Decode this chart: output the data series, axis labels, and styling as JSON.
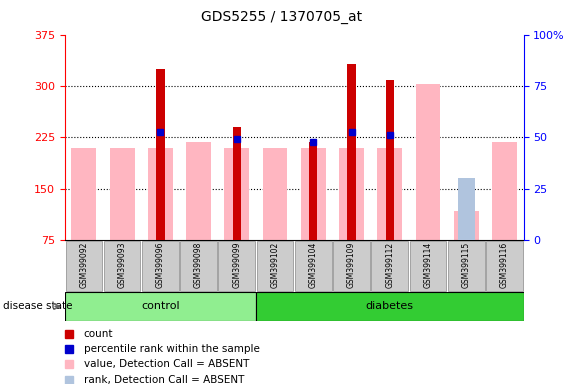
{
  "title": "GDS5255 / 1370705_at",
  "samples": [
    "GSM399092",
    "GSM399093",
    "GSM399096",
    "GSM399098",
    "GSM399099",
    "GSM399102",
    "GSM399104",
    "GSM399109",
    "GSM399112",
    "GSM399114",
    "GSM399115",
    "GSM399116"
  ],
  "groups": [
    "control",
    "control",
    "control",
    "control",
    "control",
    "diabetes",
    "diabetes",
    "diabetes",
    "diabetes",
    "diabetes",
    "diabetes",
    "diabetes"
  ],
  "count_values": [
    null,
    null,
    325,
    null,
    240,
    null,
    218,
    332,
    308,
    null,
    null,
    null
  ],
  "percentile_values": [
    null,
    null,
    232,
    null,
    222,
    null,
    218,
    232,
    228,
    null,
    null,
    null
  ],
  "absent_value_values": [
    210,
    210,
    210,
    218,
    210,
    210,
    210,
    210,
    210,
    303,
    118,
    218
  ],
  "absent_rank_values": [
    null,
    null,
    null,
    null,
    null,
    null,
    null,
    null,
    null,
    null,
    165,
    null
  ],
  "ylim_left": [
    75,
    375
  ],
  "ylim_right": [
    0,
    100
  ],
  "yticks_left": [
    75,
    150,
    225,
    300,
    375
  ],
  "yticks_right": [
    0,
    25,
    50,
    75,
    100
  ],
  "ytick_right_labels": [
    "0",
    "25",
    "50",
    "75",
    "100%"
  ],
  "color_count": "#CC0000",
  "color_percentile": "#0000CC",
  "color_absent_value": "#FFB6C1",
  "color_absent_rank": "#B0C4DE",
  "color_control": "#90EE90",
  "color_diabetes": "#33CC33",
  "n_control": 5,
  "n_diabetes": 7,
  "disease_state_label": "disease state",
  "legend_items": [
    {
      "label": "count",
      "color": "#CC0000"
    },
    {
      "label": "percentile rank within the sample",
      "color": "#0000CC"
    },
    {
      "label": "value, Detection Call = ABSENT",
      "color": "#FFB6C1"
    },
    {
      "label": "rank, Detection Call = ABSENT",
      "color": "#B0C4DE"
    }
  ]
}
